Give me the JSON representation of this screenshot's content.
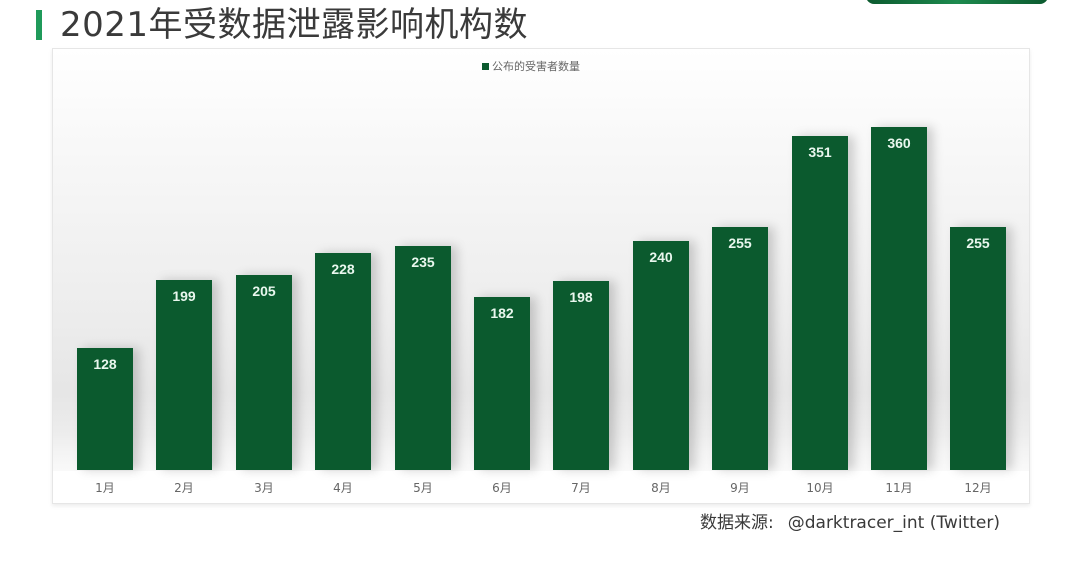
{
  "header": {
    "title": "2021年受数据泄露影响机构数"
  },
  "legend": {
    "label": "公布的受害者数量",
    "color": "#0b5a2e"
  },
  "source": {
    "label": "数据来源:",
    "value": "@darktracer_int (Twitter)"
  },
  "chart_data": {
    "type": "bar",
    "title": "2021年受数据泄露影响机构数",
    "xlabel": "",
    "ylabel": "",
    "categories": [
      "1月",
      "2月",
      "3月",
      "4月",
      "5月",
      "6月",
      "7月",
      "8月",
      "9月",
      "10月",
      "11月",
      "12月"
    ],
    "series": [
      {
        "name": "公布的受害者数量",
        "color": "#0b5a2e",
        "values": [
          128,
          199,
          205,
          228,
          235,
          182,
          198,
          240,
          255,
          351,
          360,
          255
        ]
      }
    ],
    "values": [
      128,
      199,
      205,
      228,
      235,
      182,
      198,
      240,
      255,
      351,
      360,
      255
    ],
    "legend_position": "top",
    "grid": false,
    "data_labels": true,
    "ylim": [
      0,
      360
    ]
  }
}
